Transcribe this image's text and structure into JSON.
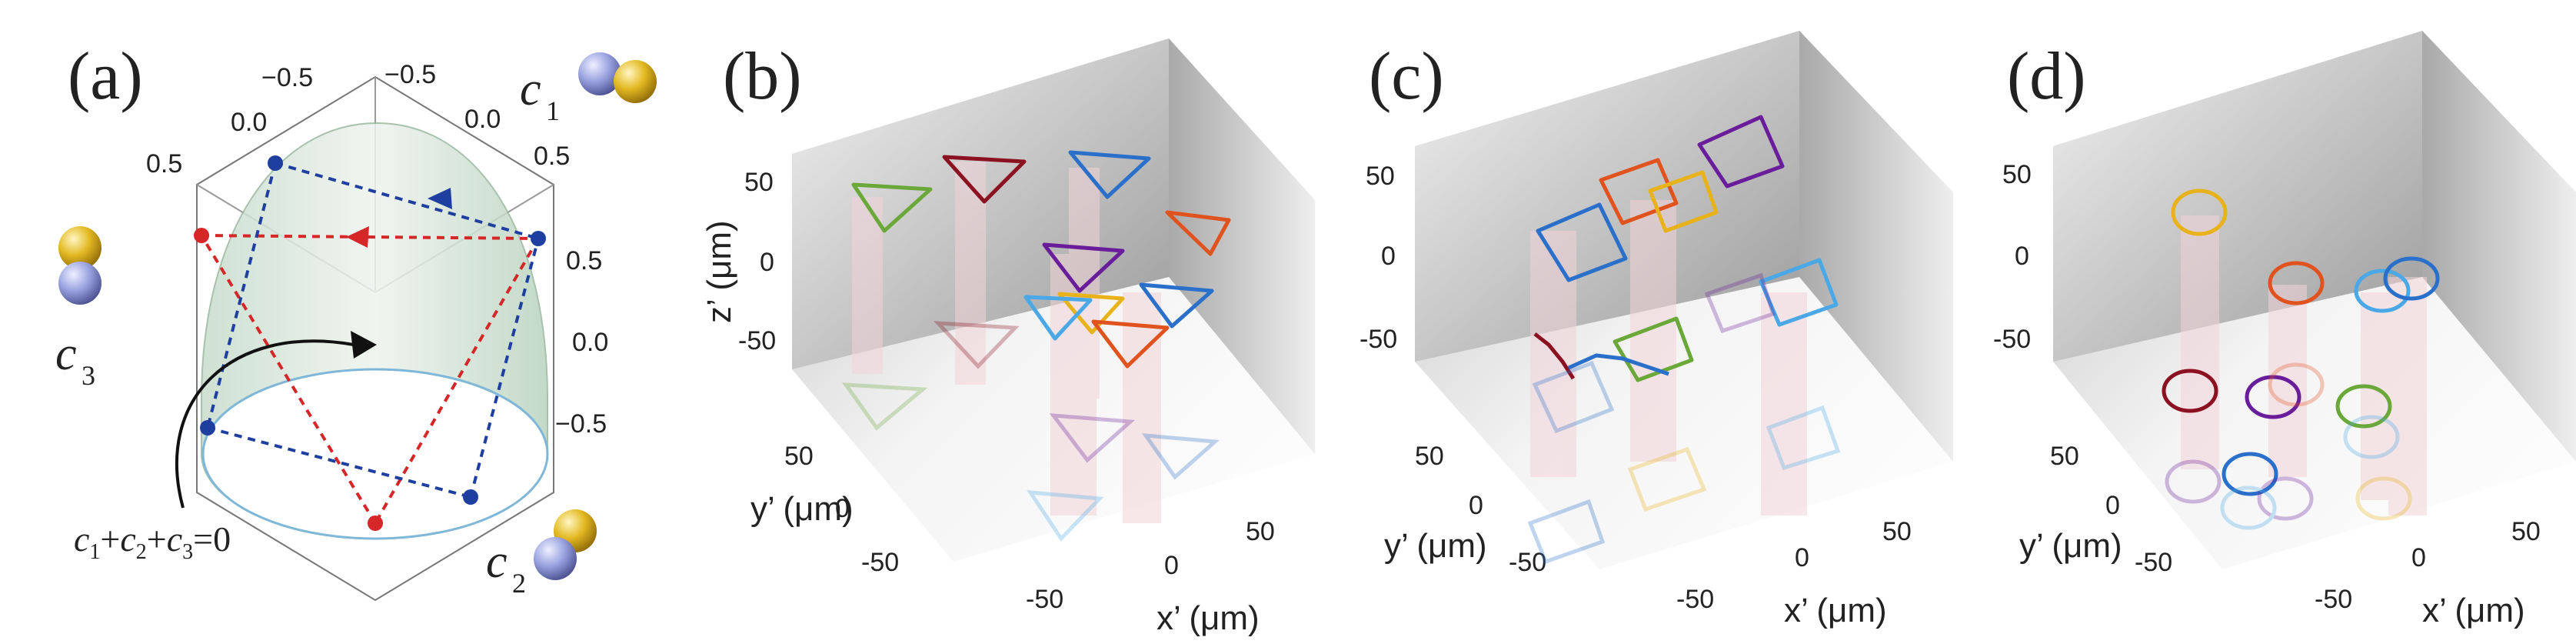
{
  "panels": [
    {
      "label": "(a)"
    },
    {
      "label": "(b)"
    },
    {
      "label": "(c)"
    },
    {
      "label": "(d)"
    }
  ],
  "panel_a": {
    "c1_var": "c",
    "c1_sub": "1",
    "c2_var": "c",
    "c2_sub": "2",
    "c3_var": "c",
    "c3_sub": "3",
    "constraint": {
      "c1": "c",
      "s1": "1",
      "p1": "+",
      "c2": "c",
      "s2": "2",
      "p2": "+",
      "c3": "c",
      "s3": "3",
      "rest": "=0"
    },
    "ticks_c1": [
      "−0.5",
      "0.0",
      "0.5"
    ],
    "ticks_c2_left": [
      "0.5",
      "0.0",
      "−0.5"
    ],
    "ticks_c3": [
      "0.5",
      "0.0",
      "−0.5"
    ]
  },
  "panel_axes": {
    "z_label": "z’ (μm)",
    "y_label": "y’ (μm)",
    "x_label": "x’ (μm)",
    "z_ticks": [
      "50",
      "0",
      "-50"
    ],
    "y_ticks": [
      "50",
      "0",
      "-50"
    ],
    "x_ticks": [
      "-50",
      "0",
      "50"
    ]
  },
  "colors": {
    "red": "#d62728",
    "blue": "#1f3fa0",
    "green": "#6aa83a",
    "darkred": "#8b1020",
    "orange": "#e0531f",
    "purple": "#6a1d9a",
    "lightblue": "#4aa8e6",
    "midblue": "#2a6fc9",
    "yellow": "#e8b21a"
  }
}
